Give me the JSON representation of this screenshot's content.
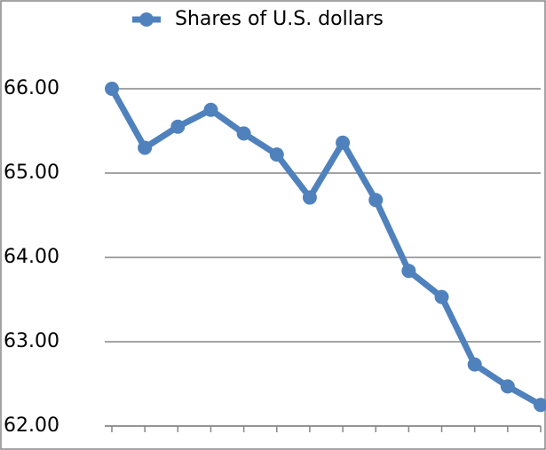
{
  "chart_data": {
    "type": "line",
    "categories": [
      null,
      null,
      null,
      null,
      null,
      null,
      null,
      null,
      null,
      null,
      null,
      null,
      null,
      null
    ],
    "series": [
      {
        "name": "Shares of U.S. dollars",
        "color": "#4f81bd",
        "values": [
          66.0,
          65.3,
          65.55,
          65.75,
          65.47,
          65.22,
          64.71,
          65.36,
          64.68,
          63.84,
          63.53,
          62.73,
          62.47,
          62.25
        ]
      }
    ],
    "ylim": [
      62,
      66
    ],
    "yticks": [
      {
        "value": 62,
        "label": "62.00"
      },
      {
        "value": 63,
        "label": "63.00"
      },
      {
        "value": 64,
        "label": "64.00"
      },
      {
        "value": 65,
        "label": "65.00"
      },
      {
        "value": 66,
        "label": "66.00"
      }
    ],
    "grid": true,
    "legend": "top"
  }
}
